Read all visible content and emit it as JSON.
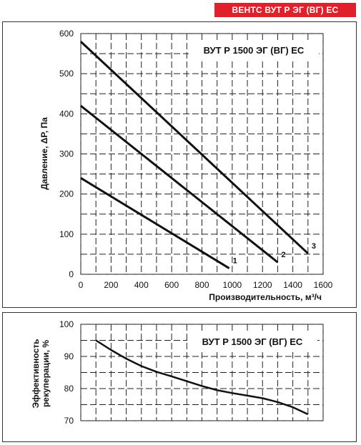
{
  "header": {
    "badge": "ВЕНТС ВУТ Р ЭГ (ВГ) ЕС"
  },
  "chart_data": [
    {
      "type": "line",
      "box_label": "ВУТ Р 1500 ЭГ (ВГ) ЕС",
      "xlabel": "Производительность, м³/ч",
      "ylabel": "Давление, ΔP, Па",
      "xlim": [
        0,
        1600
      ],
      "ylim": [
        0,
        600
      ],
      "xticks": [
        0,
        200,
        400,
        600,
        800,
        1000,
        1200,
        1400,
        1600
      ],
      "yticks": [
        0,
        100,
        200,
        300,
        400,
        500,
        600
      ],
      "grid": true,
      "series": [
        {
          "name": "1",
          "x": [
            0,
            980
          ],
          "y": [
            240,
            15
          ]
        },
        {
          "name": "2",
          "x": [
            0,
            1300
          ],
          "y": [
            420,
            30
          ]
        },
        {
          "name": "3",
          "x": [
            0,
            1500
          ],
          "y": [
            580,
            52
          ]
        }
      ]
    },
    {
      "type": "line",
      "box_label": "ВУТ Р 1500 ЭГ (ВГ) ЕС",
      "xlabel": "",
      "ylabel": "Эффективность рекуперации, %",
      "xlim": [
        0,
        1600
      ],
      "ylim": [
        70,
        100
      ],
      "yticks": [
        70,
        80,
        90,
        100
      ],
      "grid": true,
      "series": [
        {
          "x": [
            100,
            200,
            300,
            400,
            500,
            600,
            700,
            800,
            900,
            1000,
            1100,
            1200,
            1300,
            1400,
            1500
          ],
          "y": [
            95,
            92,
            89.3,
            87,
            85.2,
            83.8,
            82.3,
            80.8,
            79.5,
            78.6,
            77.8,
            77,
            75.8,
            74.2,
            72
          ]
        }
      ]
    }
  ]
}
